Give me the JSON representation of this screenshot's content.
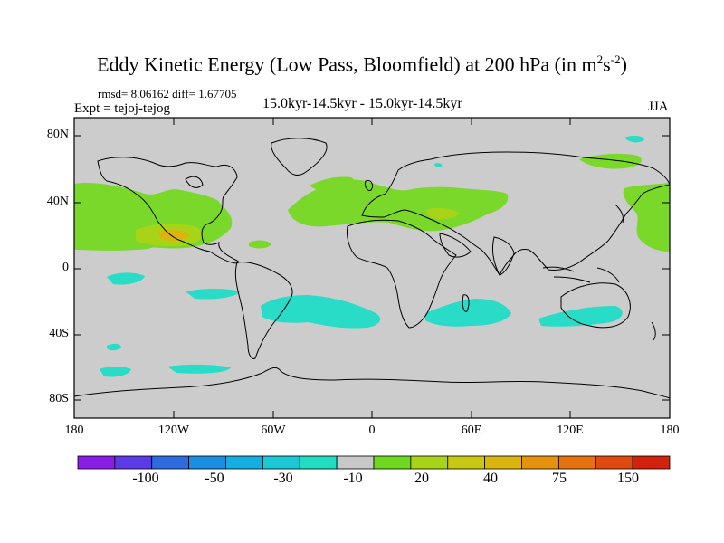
{
  "title": {
    "main": "Eddy Kinetic Energy (Low Pass, Bloomfield) at 200 hPa (in m",
    "sup1": "2",
    "mid": "s",
    "sup2": "-2",
    "close": ")"
  },
  "stats": "rmsd= 8.06162 diff= 1.67705",
  "experiment": "Expt = tejoj-tejog",
  "period": "15.0kyr-14.5kyr - 15.0kyr-14.5kyr",
  "season": "JJA",
  "axes": {
    "y_labels": [
      "80N",
      "40N",
      "0",
      "40S",
      "80S"
    ],
    "x_labels": [
      "180",
      "120W",
      "60W",
      "0",
      "60E",
      "120E",
      "180"
    ]
  },
  "colorbar": {
    "colors": [
      "#8a1ee6",
      "#5c3ae6",
      "#2e6ae0",
      "#1a8ee0",
      "#14aee0",
      "#1cc8d6",
      "#20dcc0",
      "#c8c8c8",
      "#6ed81e",
      "#a8d418",
      "#c8c812",
      "#dcb40e",
      "#e6920c",
      "#e6720e",
      "#e04a10",
      "#d2220e"
    ],
    "labels": [
      "-100",
      "-50",
      "-30",
      "-10",
      "20",
      "40",
      "75",
      "150"
    ]
  },
  "map": {
    "background_color": "#cccccc",
    "positive_color": "#7ad82a",
    "strong_color": "#a8d418",
    "peak_color": "#dcb40e",
    "negative_color": "#28dcc8"
  }
}
